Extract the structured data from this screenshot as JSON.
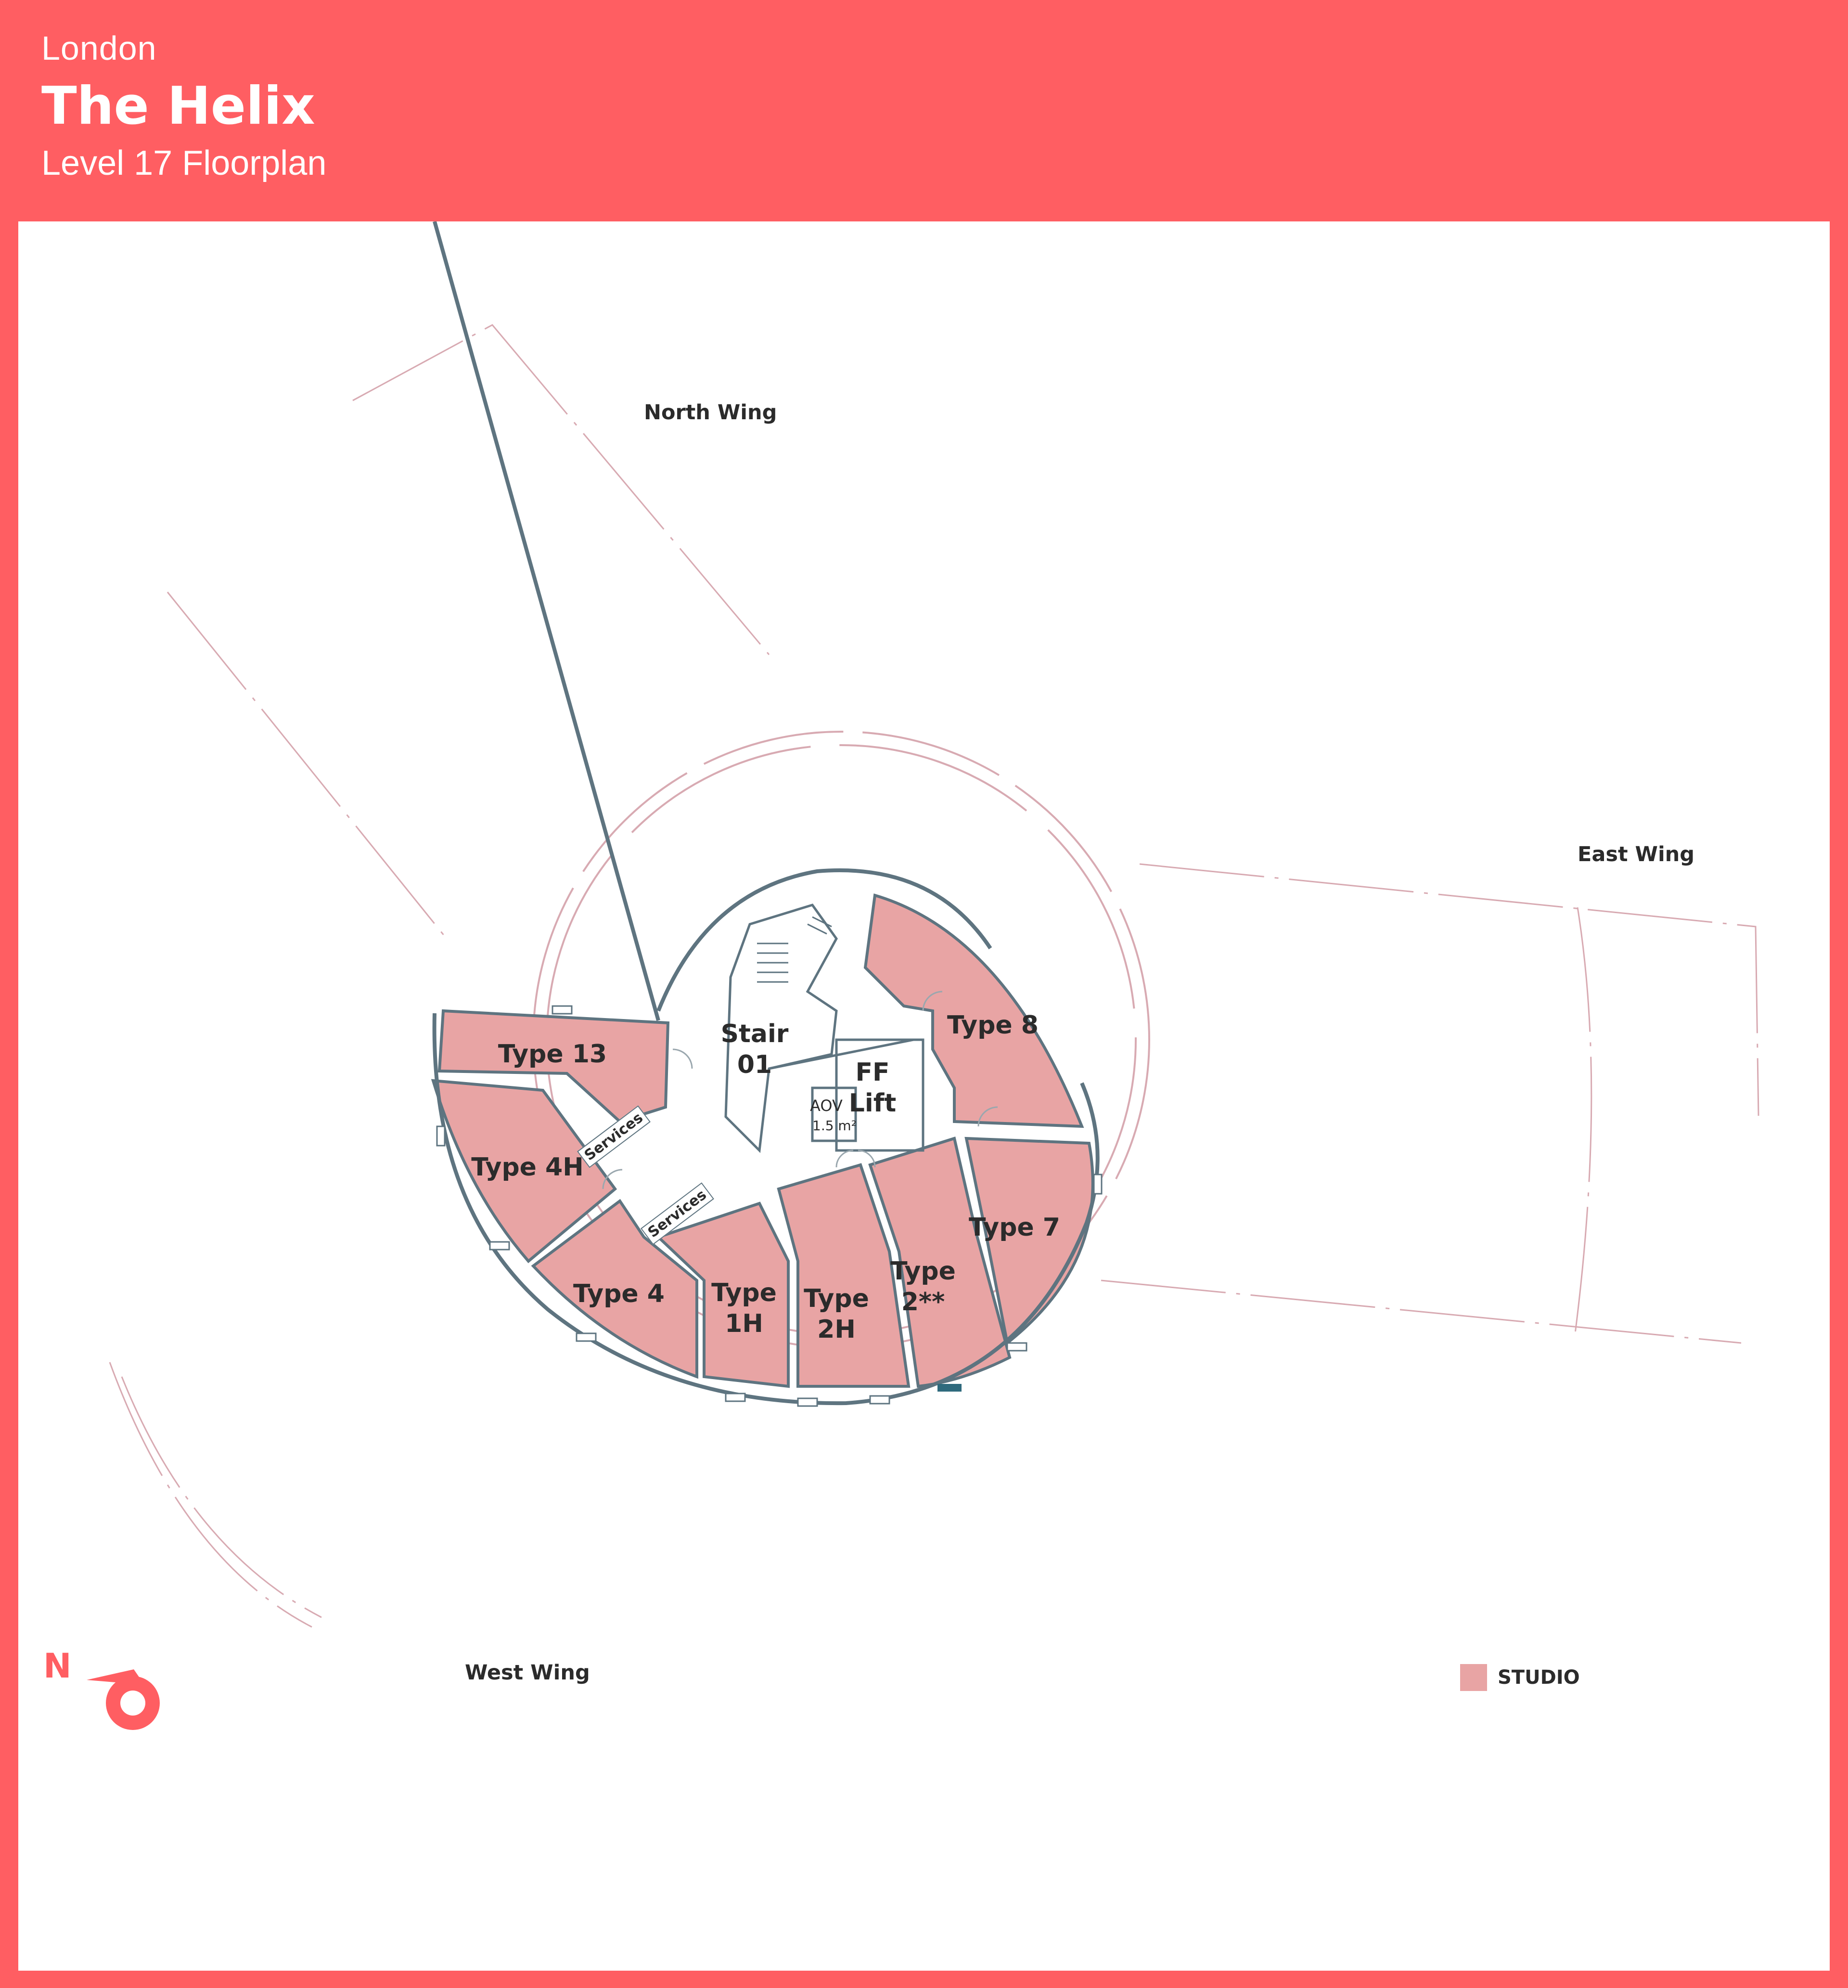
{
  "header": {
    "city": "London",
    "title": "The Helix",
    "subtitle": "Level 17 Floorplan"
  },
  "wings": {
    "north": "North Wing",
    "east": "East Wing",
    "west": "West Wing"
  },
  "core": {
    "stair": "Stair\n01",
    "lift": "FF\nLift",
    "aov": "AOV",
    "aov_area": "1.5 m²",
    "services_1": "Services",
    "services_2": "Services"
  },
  "units": [
    {
      "label": "Type 8",
      "category": "studio"
    },
    {
      "label": "Type 13",
      "category": "studio"
    },
    {
      "label": "Type 4H",
      "category": "studio"
    },
    {
      "label": "Type 4",
      "category": "studio"
    },
    {
      "label": "Type\n1H",
      "category": "studio"
    },
    {
      "label": "Type\n2H",
      "category": "studio"
    },
    {
      "label": "Type\n2**",
      "category": "studio"
    },
    {
      "label": "Type 7",
      "category": "studio"
    }
  ],
  "legend": {
    "items": [
      {
        "label": "STUDIO",
        "color": "#e8a4a4"
      }
    ]
  },
  "compass": {
    "letter": "N"
  },
  "colors": {
    "brand": "#ff5e62",
    "studio": "#e8a4a4",
    "wall": "#5e7480",
    "outline": "#d8aab2"
  }
}
